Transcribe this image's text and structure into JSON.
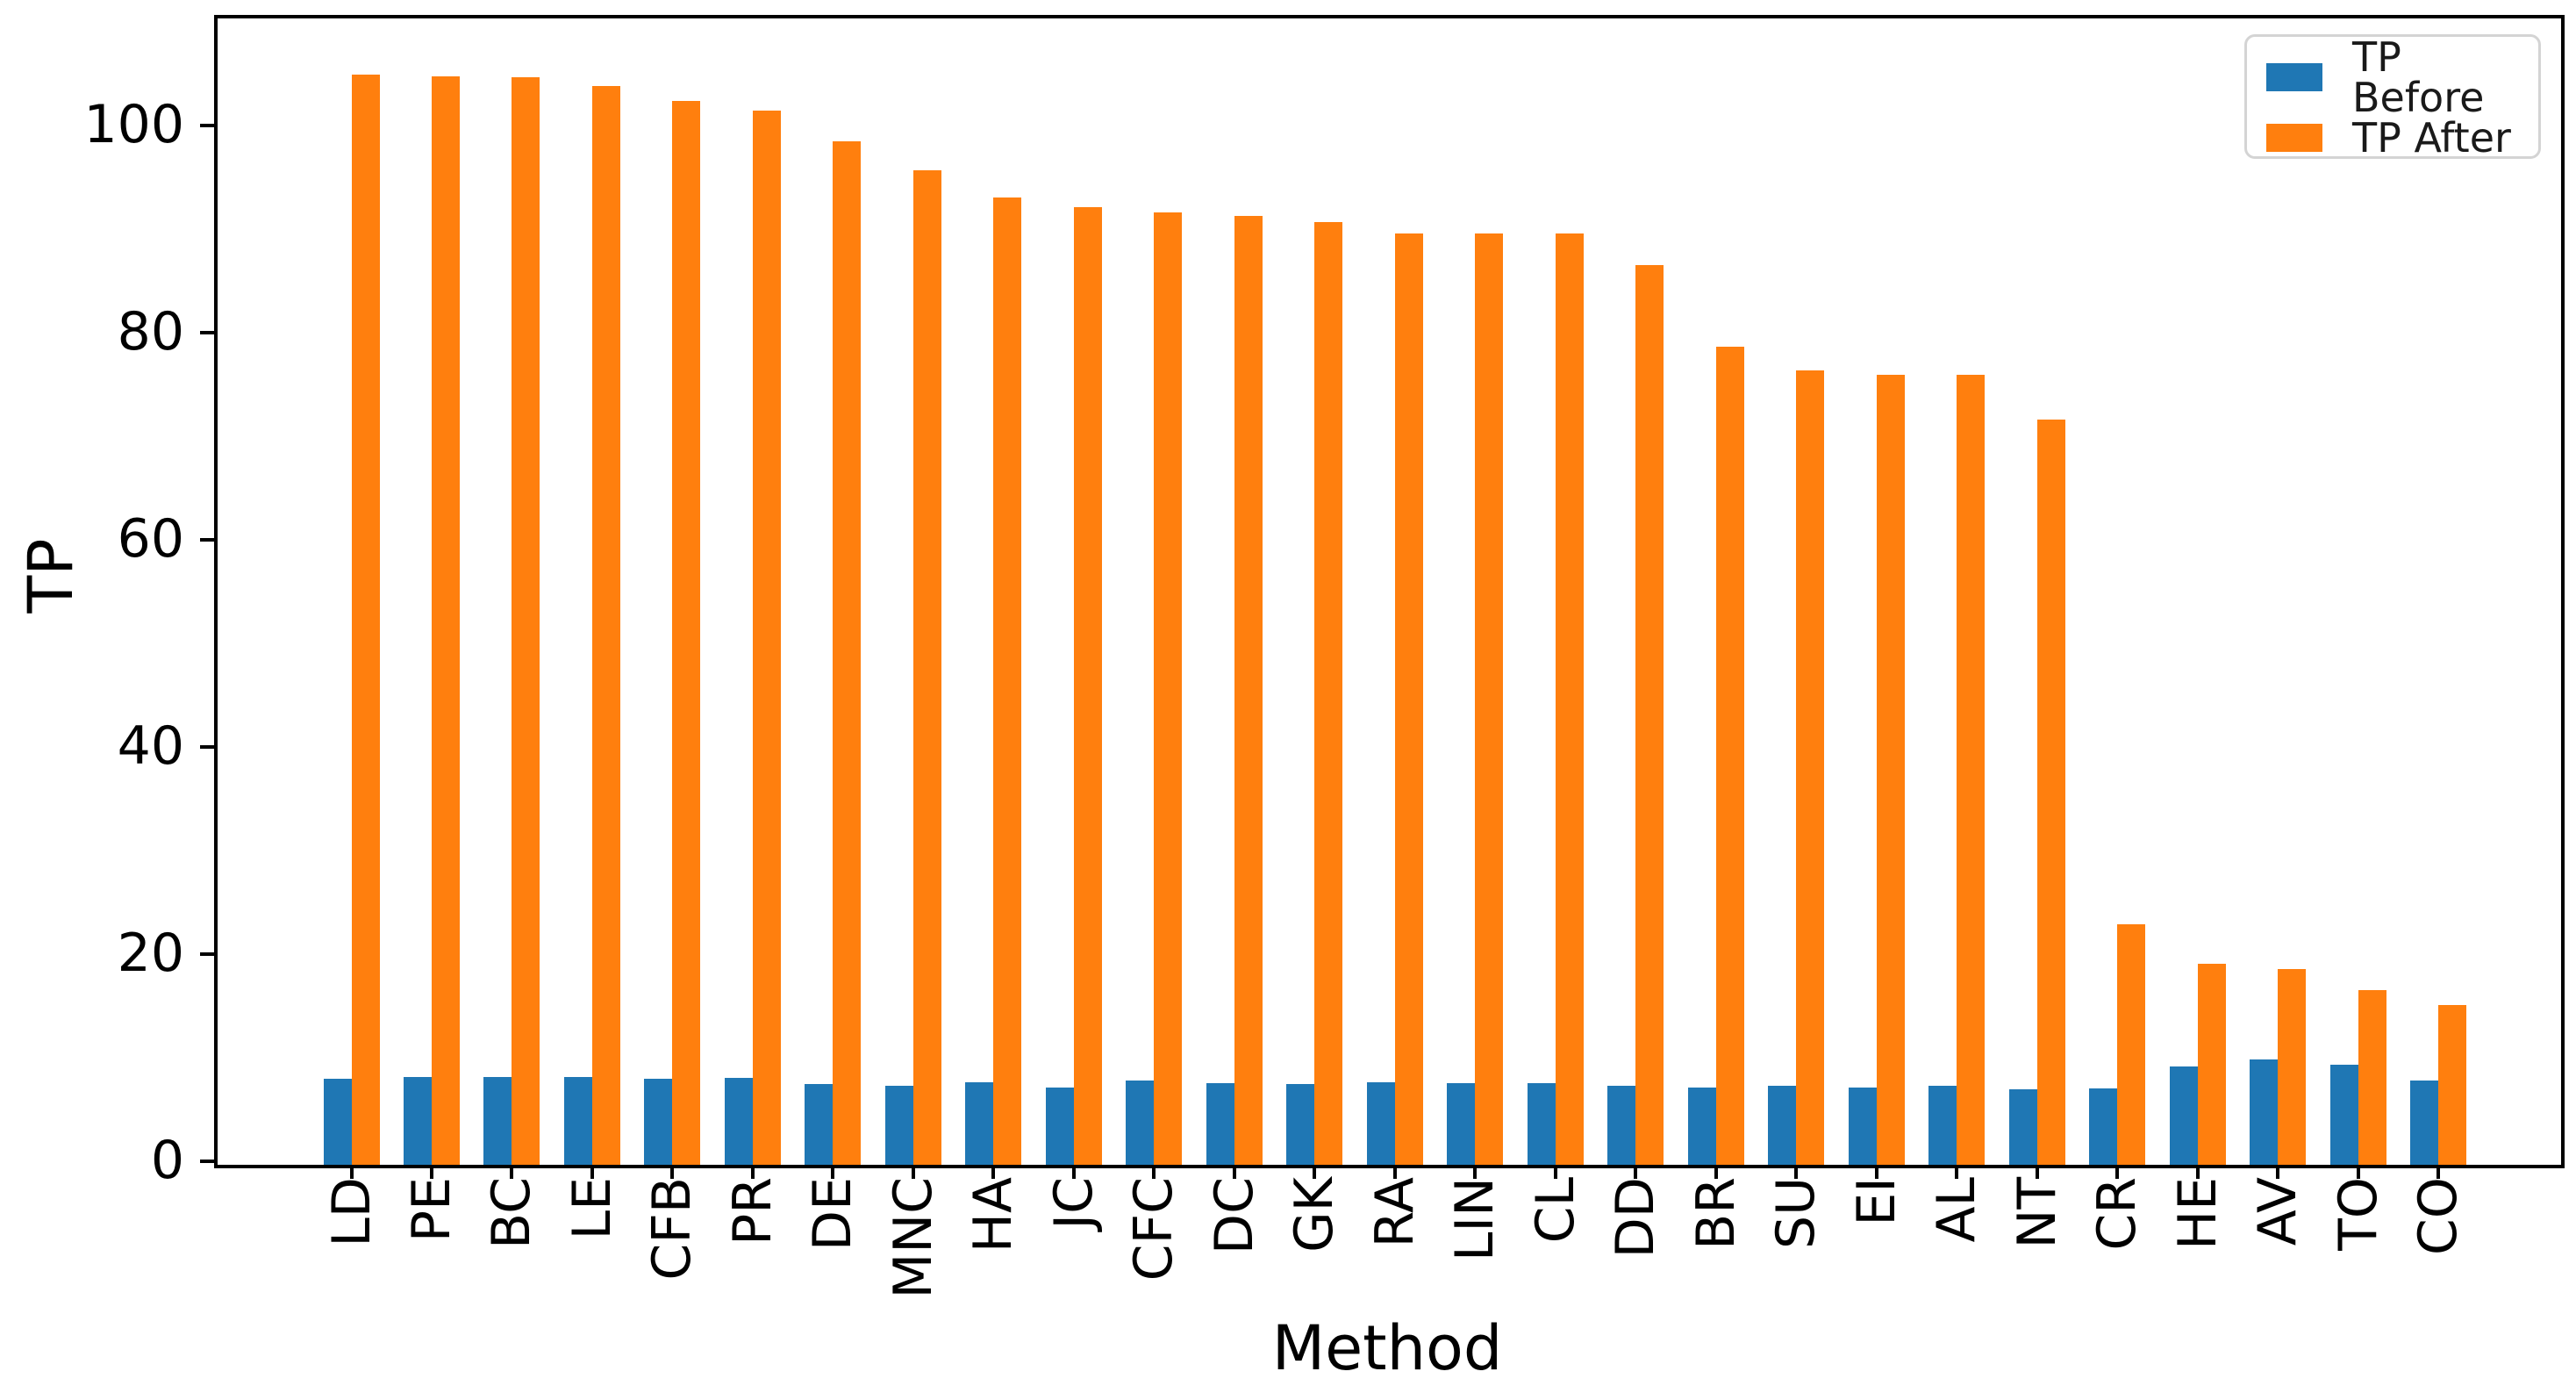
{
  "figure": {
    "background": "#ffffff",
    "xlabel": "Method",
    "ylabel": "TP"
  },
  "legend": {
    "items": [
      {
        "label": "TP Before",
        "color": "#1f77b4"
      },
      {
        "label": "TP After",
        "color": "#ff7f0e"
      }
    ],
    "position": "upper right"
  },
  "chart_data": {
    "type": "bar",
    "title": "",
    "xlabel": "Method",
    "ylabel": "TP",
    "categories": [
      "LD",
      "PE",
      "BC",
      "LE",
      "CFB",
      "PR",
      "DE",
      "MNC",
      "HA",
      "JC",
      "CFC",
      "DC",
      "GK",
      "RA",
      "LIN",
      "CL",
      "DD",
      "BR",
      "SU",
      "EI",
      "AL",
      "NT",
      "CR",
      "HE",
      "AV",
      "TO",
      "CO"
    ],
    "series": [
      {
        "name": "TP Before",
        "color": "#1f77b4",
        "values": [
          8.3,
          8.5,
          8.5,
          8.5,
          8.3,
          8.4,
          7.8,
          7.6,
          8.0,
          7.5,
          8.1,
          7.9,
          7.8,
          8.0,
          7.9,
          7.9,
          7.6,
          7.5,
          7.6,
          7.5,
          7.6,
          7.3,
          7.4,
          9.5,
          10.2,
          9.7,
          8.1
        ]
      },
      {
        "name": "TP After",
        "color": "#ff7f0e",
        "values": [
          105.3,
          105.1,
          105.0,
          104.2,
          102.7,
          101.8,
          98.8,
          96.0,
          93.4,
          92.5,
          92.0,
          91.6,
          91.0,
          89.9,
          89.9,
          89.9,
          86.9,
          79.0,
          76.7,
          76.3,
          76.3,
          72.0,
          23.2,
          19.4,
          18.9,
          16.9,
          15.4
        ]
      }
    ],
    "ylim": [
      0,
      110.7
    ],
    "yticks": [
      0,
      20,
      40,
      60,
      80,
      100
    ],
    "grid": false,
    "legend_position": "upper right",
    "bar_mode": "grouped"
  }
}
